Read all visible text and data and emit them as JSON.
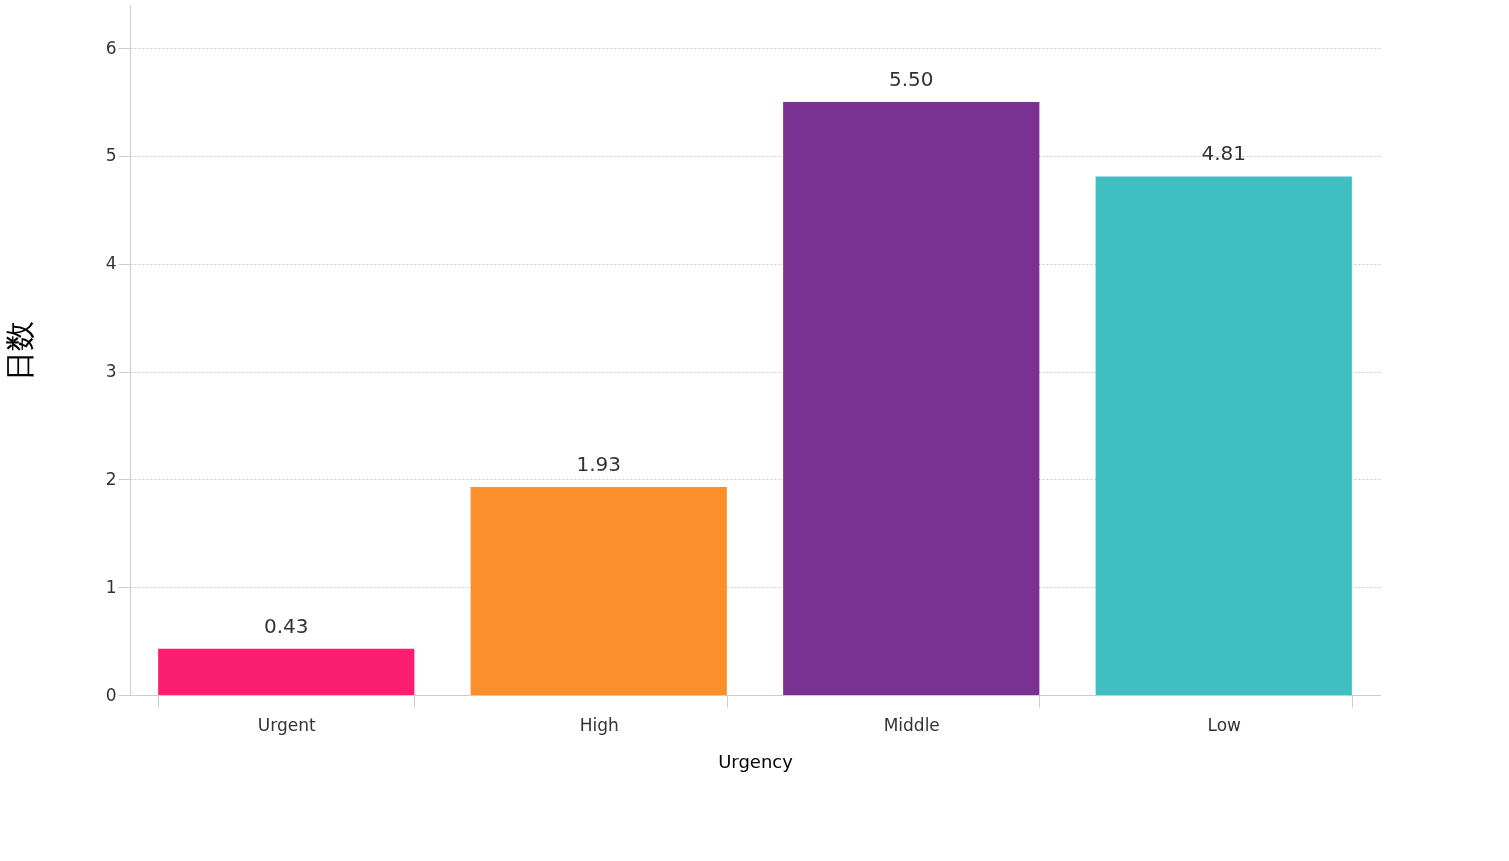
{
  "chart_data": {
    "type": "bar",
    "categories": [
      "Urgent",
      "High",
      "Middle",
      "Low"
    ],
    "values": [
      0.43,
      1.93,
      5.5,
      4.81
    ],
    "colors": [
      "#fc1f6f",
      "#fb8f2b",
      "#7a3192",
      "#3fbfc1"
    ],
    "value_labels": [
      "0.43",
      "1.93",
      "5.50",
      "4.81"
    ],
    "xlabel": "Urgency",
    "ylabel": "日数",
    "ylim": [
      0,
      6.4
    ],
    "yticks": [
      0,
      1,
      2,
      3,
      4,
      5,
      6
    ],
    "grid": "y"
  }
}
